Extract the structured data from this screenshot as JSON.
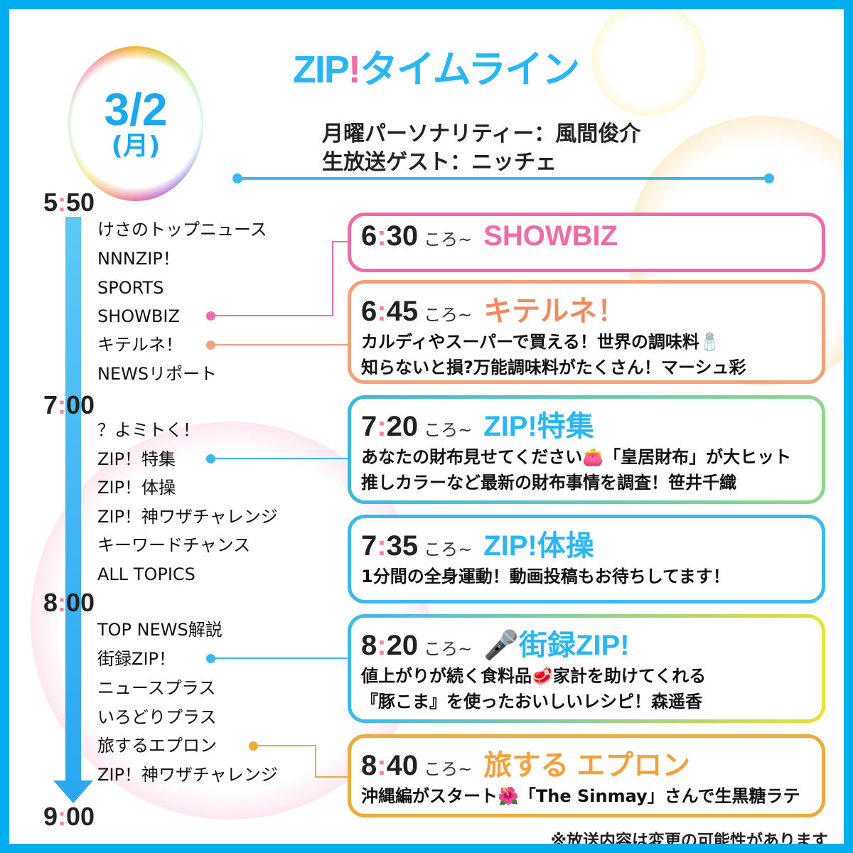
{
  "date": {
    "main": "3/2",
    "day": "(月)"
  },
  "header": {
    "title_prefix": "ZIP",
    "title_bang": "!",
    "title_rest": "タイムライン",
    "personality": "月曜パーソナリティー：風間俊介",
    "guest": "生放送ゲスト：ニッチェ"
  },
  "timeline": [
    {
      "hour": "5",
      "min": "50",
      "items": [
        "けさのトップニュース",
        "NNNZIP！",
        "SPORTS",
        "SHOWBIZ",
        "キテルネ！",
        "NEWSリポート"
      ]
    },
    {
      "hour": "7",
      "min": "00",
      "items": [
        "？よミトく！",
        "ZIP！特集",
        "ZIP！体操",
        "ZIP！神ワザチャレンジ",
        "キーワードチャンス",
        "ALL TOPICS"
      ]
    },
    {
      "hour": "8",
      "min": "00",
      "items": [
        "TOP NEWS解説",
        "街録ZIP！",
        "ニュースプラス",
        "いろどりプラス",
        "旅するエプロン",
        "ZIP！神ワザチャレンジ"
      ]
    },
    {
      "hour": "9",
      "min": "00",
      "items": []
    }
  ],
  "cards": [
    {
      "hour": "6",
      "min": "30",
      "suffix": "ころ~",
      "logo": "SHOWBIZ",
      "logo_color": "#f06aaa",
      "border": "#f06aaa",
      "lines": []
    },
    {
      "hour": "6",
      "min": "45",
      "suffix": "ころ~",
      "logo": "キテルネ！",
      "logo_color": "#f28a60",
      "border": "#f4a07a",
      "lines": [
        "カルディやスーパーで買える！世界の調味料🧂",
        "知らないと損?万能調味料がたくさん！マーシュ彩"
      ]
    },
    {
      "hour": "7",
      "min": "20",
      "suffix": "ころ~",
      "logo": "ZIP!特集",
      "logo_color": "#29b6f6",
      "border": "#3bb8e0",
      "lines": [
        "あなたの財布見せてください👛「皇居財布」が大ヒット",
        "推しカラーなど最新の財布事情を調査！笹井千織"
      ]
    },
    {
      "hour": "7",
      "min": "35",
      "suffix": "ころ~",
      "logo": "ZIP!体操",
      "logo_color": "#29b6f6",
      "border": "#3bb8f0",
      "lines": [
        "1分間の全身運動！動画投稿もお待ちしてます！"
      ]
    },
    {
      "hour": "8",
      "min": "20",
      "suffix": "ころ~",
      "logo": "🎤街録ZIP!",
      "logo_color": "#29b6f6",
      "border": "#3bb8f0",
      "lines": [
        "値上がりが続く食料品🥩家計を助けてくれる",
        "『豚こま』を使ったおいしいレシピ！森遥香"
      ]
    },
    {
      "hour": "8",
      "min": "40",
      "suffix": "ころ~",
      "logo": "旅する エプロン",
      "logo_color": "#f4a03b",
      "border": "#f2a93b",
      "lines": [
        "沖縄編がスタート🌺「The Sinmay」さんで生黒糖ラテ"
      ]
    }
  ],
  "note": "※放送内容は変更の可能性があります",
  "colors": {
    "frame": "#00aef0",
    "accent_pink": "#f06aaa",
    "accent_blue": "#3bb8f0",
    "accent_orange": "#f2a93b"
  }
}
